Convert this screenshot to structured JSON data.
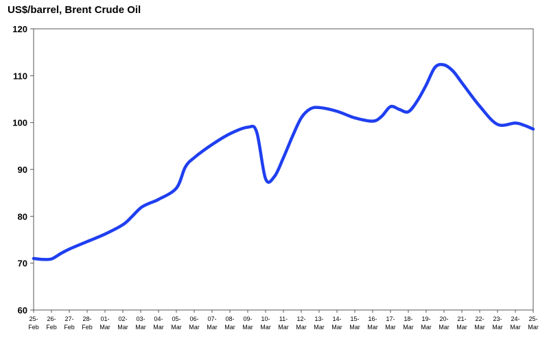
{
  "chart_data": {
    "type": "line",
    "title": "US$/barrel, Brent Crude Oil",
    "xlabel": "",
    "ylabel": "",
    "ylim": [
      60,
      120
    ],
    "yticks": [
      60,
      70,
      80,
      90,
      100,
      110,
      120
    ],
    "grid": false,
    "x_ticks": [
      [
        "25-",
        "Feb"
      ],
      [
        "26-",
        "Feb"
      ],
      [
        "27-",
        "Feb"
      ],
      [
        "28-",
        "Feb"
      ],
      [
        "01-",
        "Mar"
      ],
      [
        "02-",
        "Mar"
      ],
      [
        "03-",
        "Mar"
      ],
      [
        "04-",
        "Mar"
      ],
      [
        "05-",
        "Mar"
      ],
      [
        "06-",
        "Mar"
      ],
      [
        "07-",
        "Mar"
      ],
      [
        "08-",
        "Mar"
      ],
      [
        "09-",
        "Mar"
      ],
      [
        "10-",
        "Mar"
      ],
      [
        "11-",
        "Mar"
      ],
      [
        "12-",
        "Mar"
      ],
      [
        "13-",
        "Mar"
      ],
      [
        "14-",
        "Mar"
      ],
      [
        "15-",
        "Mar"
      ],
      [
        "16-",
        "Mar"
      ],
      [
        "17-",
        "Mar"
      ],
      [
        "18-",
        "Mar"
      ],
      [
        "19-",
        "Mar"
      ],
      [
        "20-",
        "Mar"
      ],
      [
        "21-",
        "Mar"
      ],
      [
        "22-",
        "Mar"
      ],
      [
        "23-",
        "Mar"
      ],
      [
        "24-",
        "Mar"
      ],
      [
        "25-",
        "Mar"
      ]
    ],
    "series": [
      {
        "color": "#1f3ff0",
        "points": [
          [
            0,
            71.0
          ],
          [
            0.5,
            70.8
          ],
          [
            1,
            70.9
          ],
          [
            1.5,
            72.0
          ],
          [
            2,
            73.0
          ],
          [
            3,
            74.6
          ],
          [
            4,
            76.2
          ],
          [
            5,
            78.2
          ],
          [
            5.5,
            79.9
          ],
          [
            6,
            81.8
          ],
          [
            6.5,
            82.8
          ],
          [
            7,
            83.6
          ],
          [
            8,
            86.0
          ],
          [
            8.5,
            90.5
          ],
          [
            9,
            92.5
          ],
          [
            10,
            95.3
          ],
          [
            11,
            97.6
          ],
          [
            12,
            99.0
          ],
          [
            12.5,
            98.0
          ],
          [
            13,
            88.0
          ],
          [
            13.5,
            88.5
          ],
          [
            14,
            92.5
          ],
          [
            14.5,
            97.0
          ],
          [
            15,
            101.0
          ],
          [
            15.5,
            102.9
          ],
          [
            16,
            103.2
          ],
          [
            17,
            102.4
          ],
          [
            18,
            101.0
          ],
          [
            19,
            100.3
          ],
          [
            19.5,
            101.3
          ],
          [
            20,
            103.4
          ],
          [
            20.5,
            102.8
          ],
          [
            21,
            102.3
          ],
          [
            21.5,
            104.6
          ],
          [
            22,
            108.0
          ],
          [
            22.5,
            111.8
          ],
          [
            23,
            112.3
          ],
          [
            23.5,
            111.0
          ],
          [
            24,
            108.5
          ],
          [
            25,
            103.5
          ],
          [
            26,
            99.6
          ],
          [
            27,
            99.9
          ],
          [
            27.5,
            99.4
          ],
          [
            28,
            98.6
          ]
        ]
      }
    ]
  }
}
